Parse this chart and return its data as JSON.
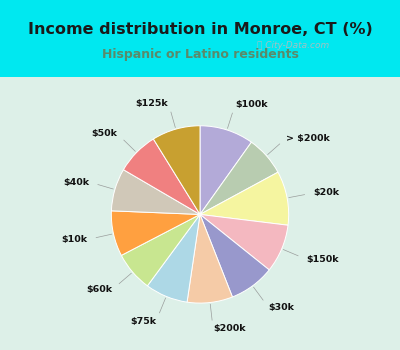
{
  "title": "Income distribution in Monroe, CT (%)",
  "subtitle": "Hispanic or Latino residents",
  "title_color": "#1a1a1a",
  "subtitle_color": "#5a8a6a",
  "bg_cyan": "#00e8f0",
  "bg_chart": "#ddf0e8",
  "watermark": "Ⓢ City-Data.com",
  "title_fontsize": 11.5,
  "subtitle_fontsize": 9,
  "slices": [
    {
      "label": "$100k",
      "value": 9.5,
      "color": "#b3aad8"
    },
    {
      "label": "> $200k",
      "value": 7.0,
      "color": "#b8ccb0"
    },
    {
      "label": "$20k",
      "value": 9.5,
      "color": "#f5f5a0"
    },
    {
      "label": "$150k",
      "value": 8.5,
      "color": "#f4b8c0"
    },
    {
      "label": "$30k",
      "value": 8.0,
      "color": "#9898cc"
    },
    {
      "label": "$200k",
      "value": 8.0,
      "color": "#f5cba7"
    },
    {
      "label": "$75k",
      "value": 7.5,
      "color": "#add8e6"
    },
    {
      "label": "$60k",
      "value": 7.0,
      "color": "#c8e690"
    },
    {
      "label": "$10k",
      "value": 8.0,
      "color": "#ffa040"
    },
    {
      "label": "$40k",
      "value": 7.5,
      "color": "#d0c8b8"
    },
    {
      "label": "$50k",
      "value": 7.5,
      "color": "#f08080"
    },
    {
      "label": "$125k",
      "value": 8.5,
      "color": "#c8a030"
    }
  ]
}
